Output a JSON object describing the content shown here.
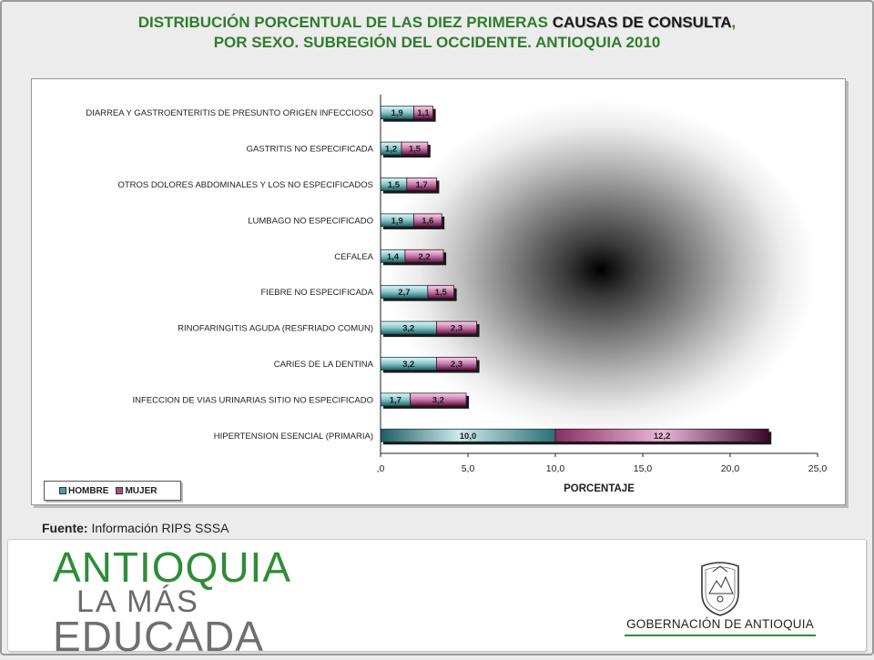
{
  "title": {
    "line1_prefix": "DISTRIBUCIÓN PORCENTUAL DE LAS DIEZ PRIMERAS ",
    "line1_highlight": "CAUSAS DE CONSULTA",
    "line1_suffix": ",",
    "line2": "POR SEXO. SUBREGIÓN DEL  OCCIDENTE.  ANTIOQUIA 2010"
  },
  "chart_data": {
    "type": "bar",
    "orientation": "horizontal",
    "stacked": true,
    "categories": [
      "DIARREA Y GASTROENTERITIS DE PRESUNTO ORIGEN INFECCIOSO",
      "GASTRITIS  NO ESPECIFICADA",
      "OTROS DOLORES ABDOMINALES Y LOS NO ESPECIFICADOS",
      "LUMBAGO NO ESPECIFICADO",
      "CEFALEA",
      "FIEBRE  NO ESPECIFICADA",
      "RINOFARINGITIS AGUDA (RESFRIADO COMUN)",
      "CARIES DE LA DENTINA",
      "INFECCION DE VIAS URINARIAS  SITIO NO ESPECIFICADO",
      "HIPERTENSION ESENCIAL (PRIMARIA)"
    ],
    "series": [
      {
        "name": "HOMBRE",
        "values": [
          1.9,
          1.2,
          1.5,
          1.9,
          1.4,
          2.7,
          3.2,
          3.2,
          1.7,
          10.0
        ],
        "labels": [
          "1,9",
          "1,2",
          "1,5",
          "1,9",
          "1,4",
          "2,7",
          "3,2",
          "3,2",
          "1,7",
          "10,0"
        ]
      },
      {
        "name": "MUJER",
        "values": [
          1.1,
          1.5,
          1.7,
          1.6,
          2.2,
          1.5,
          2.3,
          2.3,
          3.2,
          12.2
        ],
        "labels": [
          "1,1",
          "1,5",
          "1,7",
          "1,6",
          "2,2",
          "1,5",
          "2,3",
          "2,3",
          "3,2",
          "12,2"
        ]
      }
    ],
    "xlabel": "PORCENTAJE",
    "ylabel": "",
    "xlim": [
      0,
      25
    ],
    "xticks": [
      0,
      5,
      10,
      15,
      20,
      25
    ],
    "xtick_labels": [
      ",0",
      "5,0",
      "10,0",
      "15,0",
      "20,0",
      "25,0"
    ],
    "grid": false,
    "legend_position": "bottom-left",
    "colors": {
      "HOMBRE": "#3f8d93",
      "MUJER": "#8e2e69"
    }
  },
  "legend": {
    "hombre": "HOMBRE",
    "mujer": "MUJER"
  },
  "source": {
    "label": "Fuente:",
    "text": " Información RIPS SSSA"
  },
  "footer": {
    "brand_line1": "ANTIOQUIA",
    "brand_line2": "LA MÁS",
    "brand_line3": "EDUCADA",
    "gov_name": "GOBERNACIÓN DE ANTIOQUIA"
  }
}
